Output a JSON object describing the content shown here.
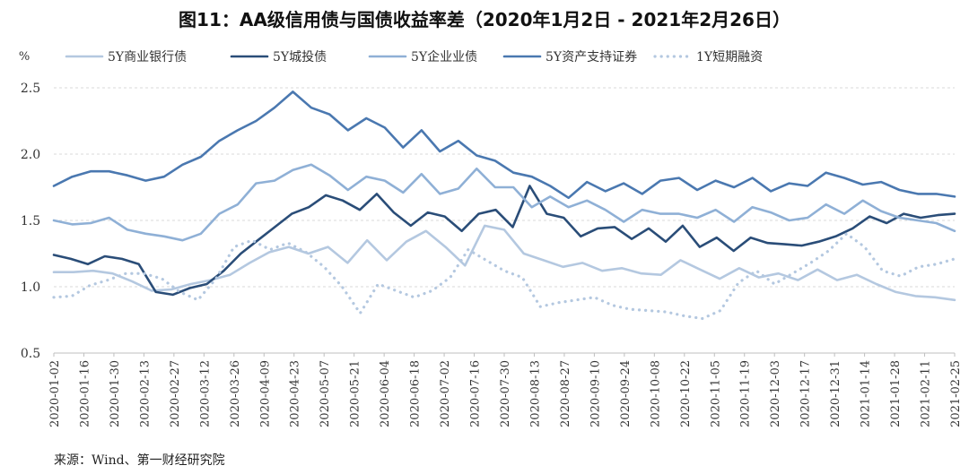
{
  "title": "图11：AA级信用债与国债收益率差（2020年1月2日 - 2021年2月26日）",
  "source": "来源：Wind、第一财经研究院",
  "chart_data": {
    "type": "line",
    "ylabel": "%",
    "ylim": [
      0.5,
      2.5
    ],
    "yticks": [
      "0.5",
      "1.0",
      "1.5",
      "2.0",
      "2.5"
    ],
    "grid": true,
    "legend": "top",
    "xlabels": [
      "2020-01-02",
      "2020-01-16",
      "2020-01-30",
      "2020-02-13",
      "2020-02-27",
      "2020-03-12",
      "2020-03-26",
      "2020-04-09",
      "2020-04-23",
      "2020-05-07",
      "2020-05-21",
      "2020-06-04",
      "2020-06-18",
      "2020-07-02",
      "2020-07-16",
      "2020-07-30",
      "2020-08-13",
      "2020-08-27",
      "2020-09-10",
      "2020-09-24",
      "2020-10-08",
      "2020-10-22",
      "2020-11-05",
      "2020-11-19",
      "2020-12-03",
      "2020-12-17",
      "2020-12-31",
      "2021-01-14",
      "2021-01-28",
      "2021-02-11",
      "2021-02-25"
    ],
    "series": [
      {
        "name": "5Y商业银行债",
        "color": "#b4c8e0",
        "style": "solid",
        "width": 2.6,
        "values": [
          1.11,
          1.11,
          1.12,
          1.1,
          1.04,
          0.97,
          0.98,
          1.02,
          1.05,
          1.09,
          1.18,
          1.26,
          1.3,
          1.25,
          1.3,
          1.18,
          1.35,
          1.2,
          1.34,
          1.42,
          1.3,
          1.16,
          1.46,
          1.43,
          1.25,
          1.2,
          1.15,
          1.18,
          1.12,
          1.14,
          1.1,
          1.09,
          1.2,
          1.13,
          1.06,
          1.14,
          1.07,
          1.1,
          1.05,
          1.13,
          1.05,
          1.09,
          1.02,
          0.96,
          0.93,
          0.92,
          0.9
        ]
      },
      {
        "name": "5Y城投债",
        "color": "#2a4d78",
        "style": "solid",
        "width": 2.6,
        "values": [
          1.24,
          1.21,
          1.17,
          1.23,
          1.21,
          1.17,
          0.96,
          0.94,
          0.99,
          1.02,
          1.12,
          1.25,
          1.35,
          1.45,
          1.55,
          1.6,
          1.69,
          1.65,
          1.58,
          1.7,
          1.56,
          1.46,
          1.56,
          1.53,
          1.42,
          1.55,
          1.58,
          1.45,
          1.76,
          1.55,
          1.52,
          1.38,
          1.44,
          1.45,
          1.36,
          1.44,
          1.34,
          1.46,
          1.3,
          1.37,
          1.27,
          1.37,
          1.33,
          1.32,
          1.31,
          1.34,
          1.38,
          1.44,
          1.53,
          1.48,
          1.55,
          1.52,
          1.54,
          1.55
        ]
      },
      {
        "name": "5Y企业业债",
        "color": "#8fb0d6",
        "style": "solid",
        "width": 2.6,
        "values": [
          1.5,
          1.47,
          1.48,
          1.52,
          1.43,
          1.4,
          1.38,
          1.35,
          1.4,
          1.55,
          1.62,
          1.78,
          1.8,
          1.88,
          1.92,
          1.84,
          1.73,
          1.83,
          1.8,
          1.71,
          1.85,
          1.7,
          1.74,
          1.89,
          1.75,
          1.75,
          1.6,
          1.68,
          1.6,
          1.65,
          1.58,
          1.49,
          1.58,
          1.55,
          1.55,
          1.52,
          1.58,
          1.49,
          1.6,
          1.56,
          1.5,
          1.52,
          1.62,
          1.55,
          1.65,
          1.57,
          1.52,
          1.5,
          1.48,
          1.42
        ]
      },
      {
        "name": "5Y资产支持证券",
        "color": "#4a78b0",
        "style": "solid",
        "width": 2.6,
        "values": [
          1.76,
          1.83,
          1.87,
          1.87,
          1.84,
          1.8,
          1.83,
          1.92,
          1.98,
          2.1,
          2.18,
          2.25,
          2.35,
          2.47,
          2.35,
          2.3,
          2.18,
          2.27,
          2.2,
          2.05,
          2.18,
          2.02,
          2.1,
          1.99,
          1.95,
          1.86,
          1.83,
          1.76,
          1.67,
          1.79,
          1.72,
          1.78,
          1.7,
          1.8,
          1.82,
          1.73,
          1.8,
          1.75,
          1.82,
          1.72,
          1.78,
          1.76,
          1.86,
          1.82,
          1.77,
          1.79,
          1.73,
          1.7,
          1.7,
          1.68
        ]
      },
      {
        "name": "1Y短期融资",
        "color": "#b4c8e0",
        "style": "dotted",
        "width": 3.2,
        "values": [
          0.92,
          0.93,
          1.01,
          1.05,
          1.1,
          1.1,
          1.06,
          0.96,
          0.9,
          1.06,
          1.3,
          1.35,
          1.28,
          1.33,
          1.26,
          1.15,
          1.0,
          0.8,
          1.02,
          0.97,
          0.92,
          0.97,
          1.07,
          1.28,
          1.2,
          1.12,
          1.07,
          0.85,
          0.88,
          0.9,
          0.92,
          0.86,
          0.83,
          0.82,
          0.81,
          0.78,
          0.76,
          0.82,
          1.03,
          1.12,
          1.02,
          1.1,
          1.18,
          1.27,
          1.4,
          1.3,
          1.12,
          1.08,
          1.15,
          1.17,
          1.21
        ]
      }
    ]
  }
}
